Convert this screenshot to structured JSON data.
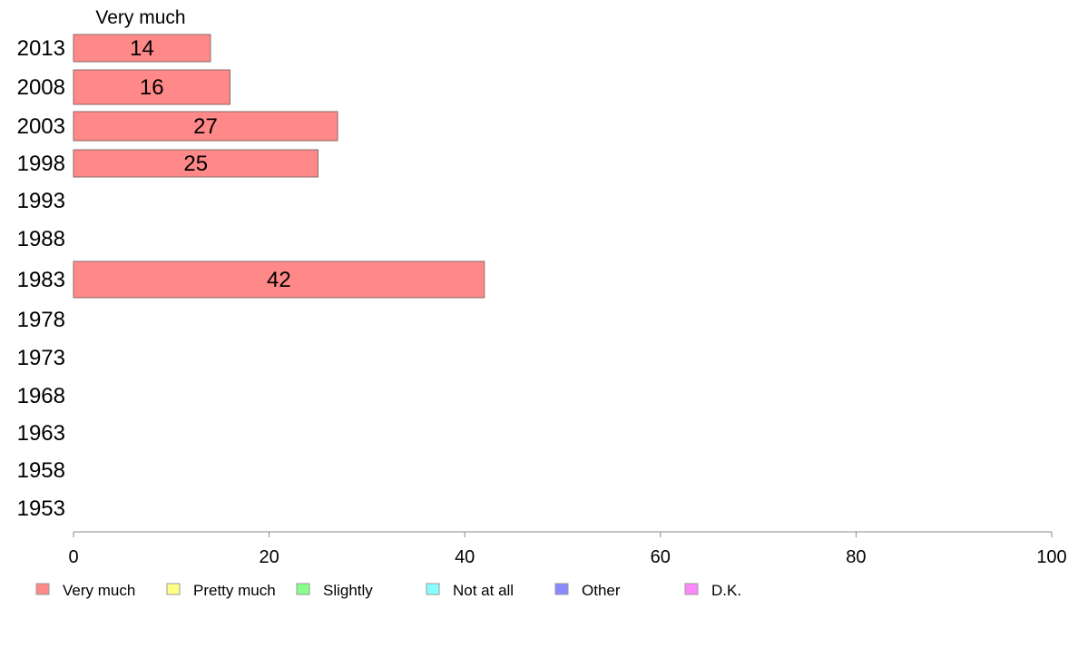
{
  "chart_data": {
    "type": "bar",
    "orientation": "horizontal",
    "stacked": true,
    "categories": [
      "2013",
      "2008",
      "2003",
      "1998",
      "1993",
      "1988",
      "1983",
      "1978",
      "1973",
      "1968",
      "1963",
      "1958",
      "1953"
    ],
    "series": [
      {
        "name": "Very much",
        "color": "#ff8888",
        "values": [
          14,
          16,
          27,
          25,
          null,
          null,
          42,
          null,
          null,
          null,
          null,
          null,
          null
        ]
      },
      {
        "name": "Pretty much",
        "color": "#ffff88",
        "values": [
          null,
          null,
          null,
          null,
          null,
          null,
          null,
          null,
          null,
          null,
          null,
          null,
          null
        ]
      },
      {
        "name": "Slightly",
        "color": "#88ff88",
        "values": [
          null,
          null,
          null,
          null,
          null,
          null,
          null,
          null,
          null,
          null,
          null,
          null,
          null
        ]
      },
      {
        "name": "Not at all",
        "color": "#88ffff",
        "values": [
          null,
          null,
          null,
          null,
          null,
          null,
          null,
          null,
          null,
          null,
          null,
          null,
          null
        ]
      },
      {
        "name": "Other",
        "color": "#8888ff",
        "values": [
          null,
          null,
          null,
          null,
          null,
          null,
          null,
          null,
          null,
          null,
          null,
          null,
          null
        ]
      },
      {
        "name": "D.K.",
        "color": "#ff88ff",
        "values": [
          null,
          null,
          null,
          null,
          null,
          null,
          null,
          null,
          null,
          null,
          null,
          null,
          null
        ]
      }
    ],
    "series_header": "Very much",
    "xlim": [
      0,
      100
    ],
    "x_ticks": [
      0,
      20,
      40,
      60,
      80,
      100
    ],
    "grid": false,
    "legend_position": "bottom"
  }
}
